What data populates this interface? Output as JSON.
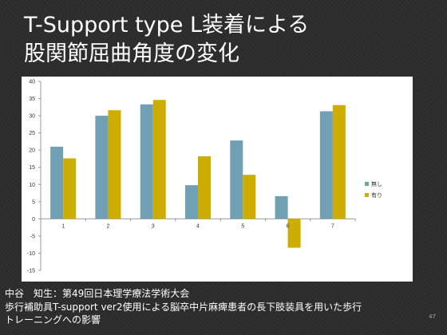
{
  "slide": {
    "title_line1": "T-Support type L装着による",
    "title_line2": "股関節屈曲角度の変化",
    "footer_line1": "中谷　知生：第49回日本理学療法学術大会",
    "footer_line2": "歩行補助具T-support ver2使用による脳卒中片麻痺患者の長下肢装具を用いた歩行",
    "footer_line3": "トレーニングへの影響",
    "page_number": "47"
  },
  "chart_data": {
    "type": "bar",
    "categories": [
      "1",
      "2",
      "3",
      "4",
      "5",
      "6",
      "7"
    ],
    "series": [
      {
        "name": "無し",
        "values": [
          21,
          30,
          33.3,
          9.8,
          22.8,
          6.6,
          31.3
        ],
        "color": "#6fa0b4"
      },
      {
        "name": "有り",
        "values": [
          17.6,
          31.6,
          34.6,
          18.2,
          12.8,
          -8.4,
          33.1
        ],
        "color": "#ccad00"
      }
    ],
    "ylim": [
      -15,
      40
    ],
    "yticks": [
      "40",
      "35",
      "30",
      "25",
      "20",
      "15",
      "10",
      "5",
      "0",
      "-5",
      "-10",
      "-15"
    ],
    "grid": false,
    "legend": "right"
  }
}
